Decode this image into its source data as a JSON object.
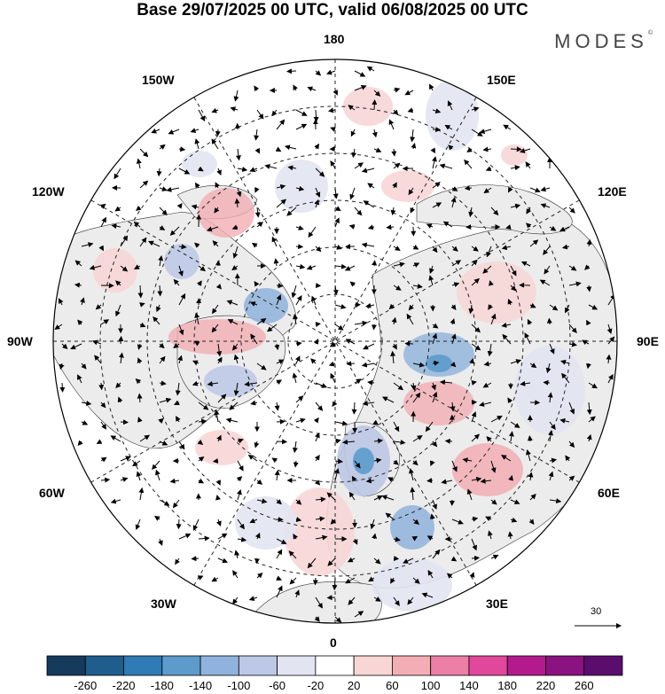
{
  "title": "Base 29/07/2025 00 UTC, valid 06/08/2025 00 UTC",
  "brand": "MODES",
  "brand_mark": "©",
  "longitude_labels": {
    "top": "180",
    "bottom": "0",
    "left": "90W",
    "right": "90E",
    "upper_left_1": "150W",
    "upper_left_2": "120W",
    "upper_right_1": "150E",
    "upper_right_2": "120E",
    "lower_left_1": "60W",
    "lower_left_2": "30W",
    "lower_right_1": "60E",
    "lower_right_2": "30E"
  },
  "vector_scale": {
    "label": "30"
  },
  "colorbar": {
    "labels": [
      "-260",
      "-220",
      "-180",
      "-140",
      "-100",
      "-60",
      "-20",
      "20",
      "60",
      "100",
      "140",
      "180",
      "220",
      "260"
    ],
    "colors": [
      "#163a5c",
      "#1f5d8c",
      "#2f7bb5",
      "#5c9bcb",
      "#8fb3dc",
      "#bcc8e6",
      "#e2e4f2",
      "#ffffff",
      "#f8d6d6",
      "#f2aeb4",
      "#ec7fa6",
      "#e1489c",
      "#b31a8c",
      "#8a137f",
      "#5b0d6e"
    ]
  },
  "colors": {
    "land": "#ececec",
    "ocean": "#ffffff",
    "grid": "#222222",
    "coast": "#333333"
  }
}
